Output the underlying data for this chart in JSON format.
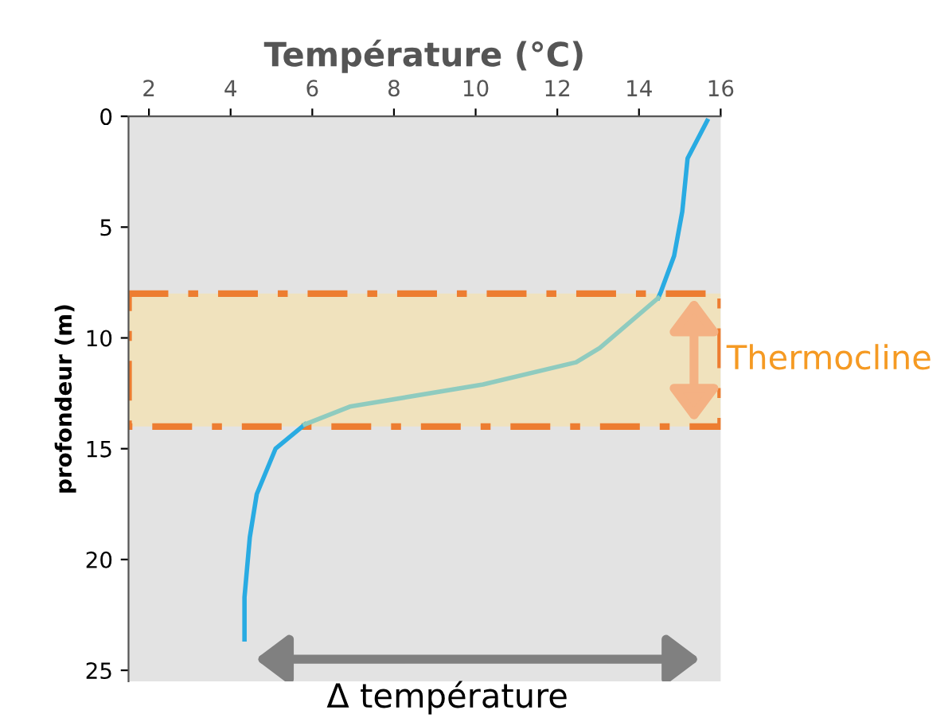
{
  "chart_data": {
    "type": "line",
    "xlabel": "Température (°C)",
    "ylabel": "profondeur (m)",
    "xlim": [
      1.5,
      16
    ],
    "xticks": [
      2,
      4,
      6,
      8,
      10,
      12,
      14,
      16
    ],
    "ylim": [
      25.5,
      0
    ],
    "yticks": [
      0,
      5,
      10,
      15,
      20,
      25
    ],
    "series": [
      {
        "color": "#29abe2",
        "x": [
          15.67,
          15.19,
          15.06,
          14.86,
          14.54,
          14.47,
          13.04,
          12.46,
          10.18,
          6.92,
          5.82,
          5.1,
          4.64,
          4.47,
          4.34,
          4.34
        ],
        "values": [
          0.2,
          1.9,
          4.3,
          6.3,
          7.9,
          8.2,
          null,
          null,
          null,
          null,
          13.9,
          15.0,
          17.05,
          19.0,
          21.7,
          23.6
        ]
      },
      {
        "color": "#8fcbbf",
        "x": [
          14.47,
          13.04,
          12.46,
          10.18,
          6.92,
          5.82
        ],
        "values": [
          8.2,
          10.45,
          11.1,
          12.1,
          13.1,
          13.9
        ]
      }
    ],
    "bands": [
      {
        "axis": "y",
        "from": 8,
        "to": 14,
        "label": "Thermocline",
        "color": "#f0e2bd"
      }
    ],
    "annotations": [
      "Δ température"
    ],
    "grid": false,
    "legend": false,
    "marker": "none",
    "line_style": "solid"
  }
}
